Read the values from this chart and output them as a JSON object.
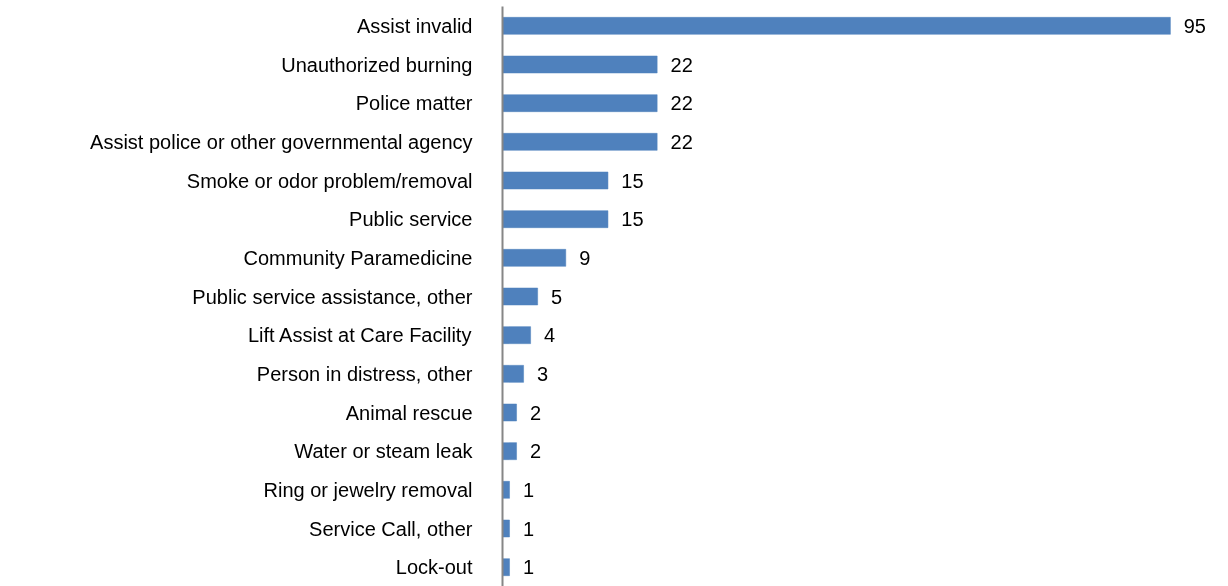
{
  "chart_data": {
    "type": "bar",
    "orientation": "horizontal",
    "categories": [
      "Assist invalid",
      "Unauthorized burning",
      "Police matter",
      "Assist police or other governmental agency",
      "Smoke or odor problem/removal",
      "Public service",
      "Community Paramedicine",
      "Public service assistance, other",
      "Lift Assist at Care Facility",
      "Person in distress, other",
      "Animal rescue",
      "Water or steam leak",
      "Ring or jewelry removal",
      "Service Call, other",
      "Lock-out"
    ],
    "values": [
      95,
      22,
      22,
      22,
      15,
      15,
      9,
      5,
      4,
      3,
      2,
      2,
      1,
      1,
      1
    ],
    "color": "#4f81bd",
    "data_labels": true,
    "grid": false
  }
}
